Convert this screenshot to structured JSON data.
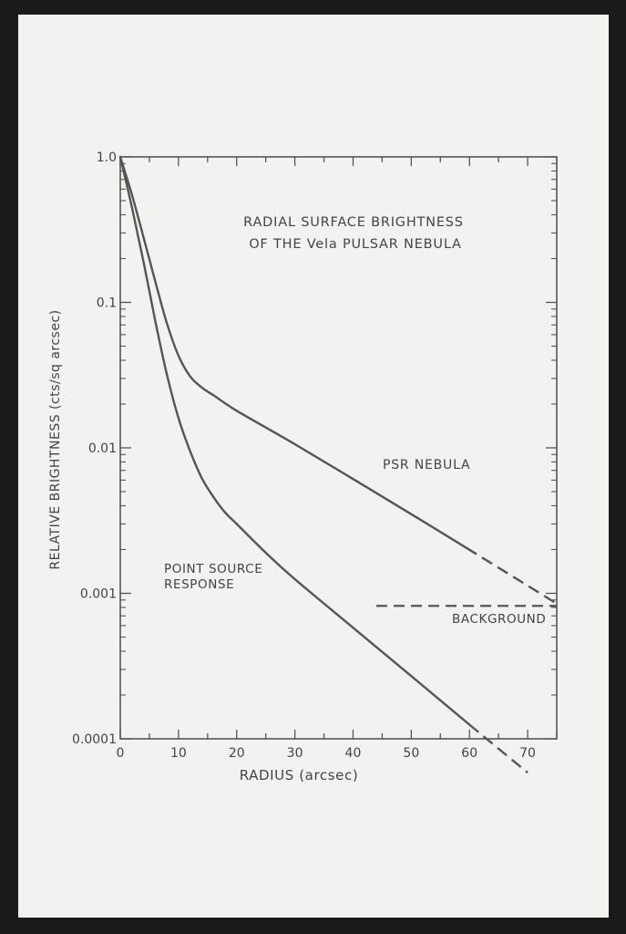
{
  "chart_data": {
    "type": "line",
    "title_lines": [
      "RADIAL SURFACE BRIGHTNESS",
      "OF THE Vela PULSAR NEBULA"
    ],
    "xlabel": "RADIUS (arcsec)",
    "ylabel": "RELATIVE BRIGHTNESS (cts/sq arcsec)",
    "xlim": [
      0,
      75
    ],
    "ylim": [
      0.0001,
      1.0
    ],
    "y_scale": "log",
    "x_ticks": [
      0,
      10,
      20,
      30,
      40,
      50,
      60,
      70
    ],
    "x_tick_labels": [
      "0",
      "10",
      "20",
      "30",
      "40",
      "50",
      "60",
      "70"
    ],
    "y_ticks": [
      0.0001,
      0.001,
      0.01,
      0.1,
      1.0
    ],
    "y_tick_labels": [
      "0.0001",
      "0.001",
      "0.01",
      "0.1",
      "1.0"
    ],
    "series": [
      {
        "label": "PSR NEBULA",
        "solid": [
          [
            0,
            1.0
          ],
          [
            2,
            0.55
          ],
          [
            4,
            0.28
          ],
          [
            6,
            0.14
          ],
          [
            8,
            0.072
          ],
          [
            10,
            0.043
          ],
          [
            12,
            0.031
          ],
          [
            14,
            0.026
          ],
          [
            16,
            0.023
          ],
          [
            20,
            0.018
          ],
          [
            30,
            0.0106
          ],
          [
            40,
            0.0061
          ],
          [
            50,
            0.0035
          ],
          [
            59.5,
            0.00205
          ]
        ],
        "dashed": [
          [
            59.5,
            0.00205
          ],
          [
            75,
            0.00085
          ]
        ],
        "color": "#555555"
      },
      {
        "label": "POINT SOURCE RESPONSE",
        "solid": [
          [
            0,
            1.0
          ],
          [
            2,
            0.45
          ],
          [
            4,
            0.19
          ],
          [
            6,
            0.075
          ],
          [
            8,
            0.032
          ],
          [
            10,
            0.016
          ],
          [
            12,
            0.0095
          ],
          [
            14,
            0.0062
          ],
          [
            16,
            0.0046
          ],
          [
            18,
            0.0036
          ],
          [
            20,
            0.003
          ],
          [
            25,
            0.0019
          ],
          [
            30,
            0.00125
          ],
          [
            40,
            0.00058
          ],
          [
            50,
            0.00027
          ],
          [
            60,
            0.000125
          ]
        ],
        "dashed": [
          [
            60,
            0.000125
          ],
          [
            70,
            5.85e-05
          ]
        ],
        "color": "#555555"
      }
    ],
    "background": {
      "label": "BACKGROUND",
      "y": 0.00082,
      "x_range": [
        44,
        75
      ],
      "style": "dashed"
    },
    "grid": false
  }
}
